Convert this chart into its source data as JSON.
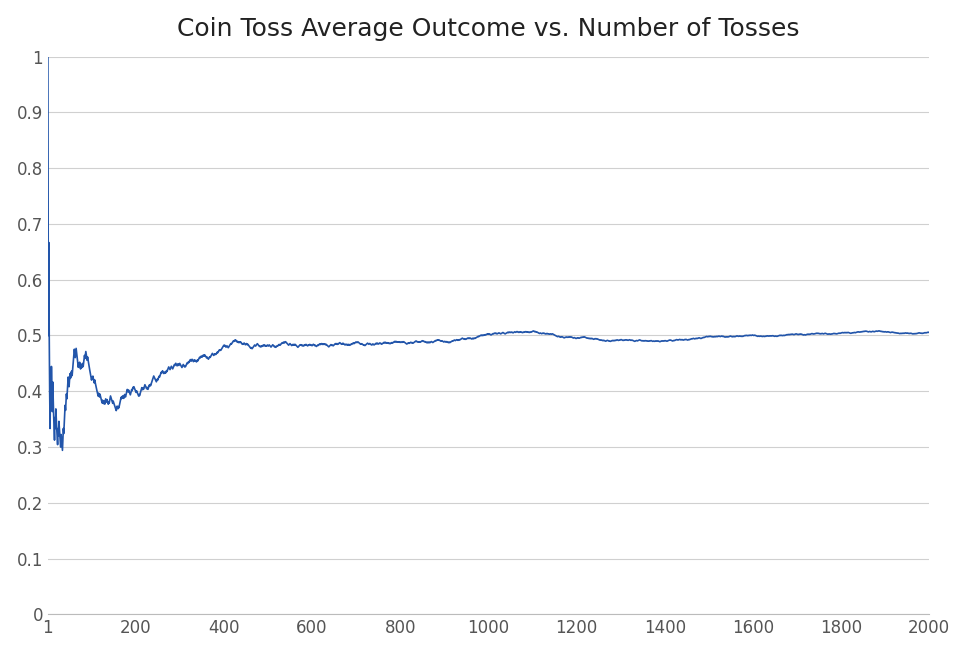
{
  "title": "Coin Toss Average Outcome vs. Number of Tosses",
  "title_fontsize": 18,
  "line_color": "#2255AA",
  "line_width": 1.2,
  "background_color": "#ffffff",
  "xlim": [
    1,
    2000
  ],
  "ylim": [
    0,
    1.0
  ],
  "xticks": [
    1,
    200,
    400,
    600,
    800,
    1000,
    1200,
    1400,
    1600,
    1800,
    2000
  ],
  "yticks": [
    0,
    0.1,
    0.2,
    0.3,
    0.4,
    0.5,
    0.6,
    0.7,
    0.8,
    0.9,
    1.0
  ],
  "grid_color": "#d0d0d0",
  "grid_linewidth": 0.8,
  "n_tosses": 2000
}
